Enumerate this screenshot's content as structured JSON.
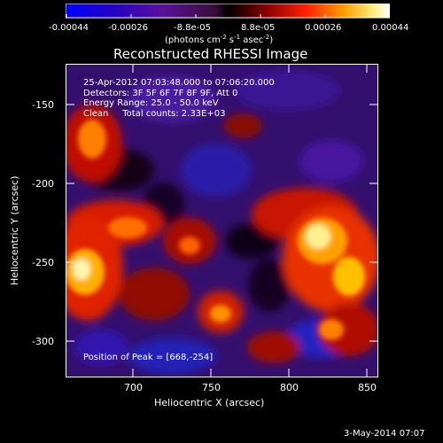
{
  "colorbar": {
    "ticks": [
      "-0.00044",
      "-0.00026",
      "-8.8e-05",
      "8.8e-05",
      "0.00026",
      "0.00044"
    ],
    "unit_label": "(photons cm⁻² s⁻¹ asec⁻²)",
    "unit_parts": {
      "a": "(photons cm",
      "b": "-2",
      "c": " s",
      "d": "-1",
      "e": " asec",
      "f": "-2",
      "g": ")"
    }
  },
  "title": "Reconstructed RHESSI Image",
  "annotation": {
    "line1": "25-Apr-2012 07:03:48.000 to 07:06:20.000",
    "line2": "Detectors: 3F 5F 6F 7F 8F 9F, Att 0",
    "line3": "Energy Range: 25.0 - 50.0 keV",
    "line4": "Clean     Total counts: 2.33E+03",
    "peak": "Position of Peak = [668,-254]"
  },
  "axes": {
    "xlabel": "Heliocentric X (arcsec)",
    "ylabel": "Heliocentric Y (arcsec)",
    "xticks": [
      "700",
      "750",
      "800",
      "850"
    ],
    "yticks": [
      "-150",
      "-200",
      "-250",
      "-300"
    ]
  },
  "footer_date": "3-May-2014 07:07",
  "colors": {
    "background": "#000000",
    "text": "#ffffff"
  }
}
